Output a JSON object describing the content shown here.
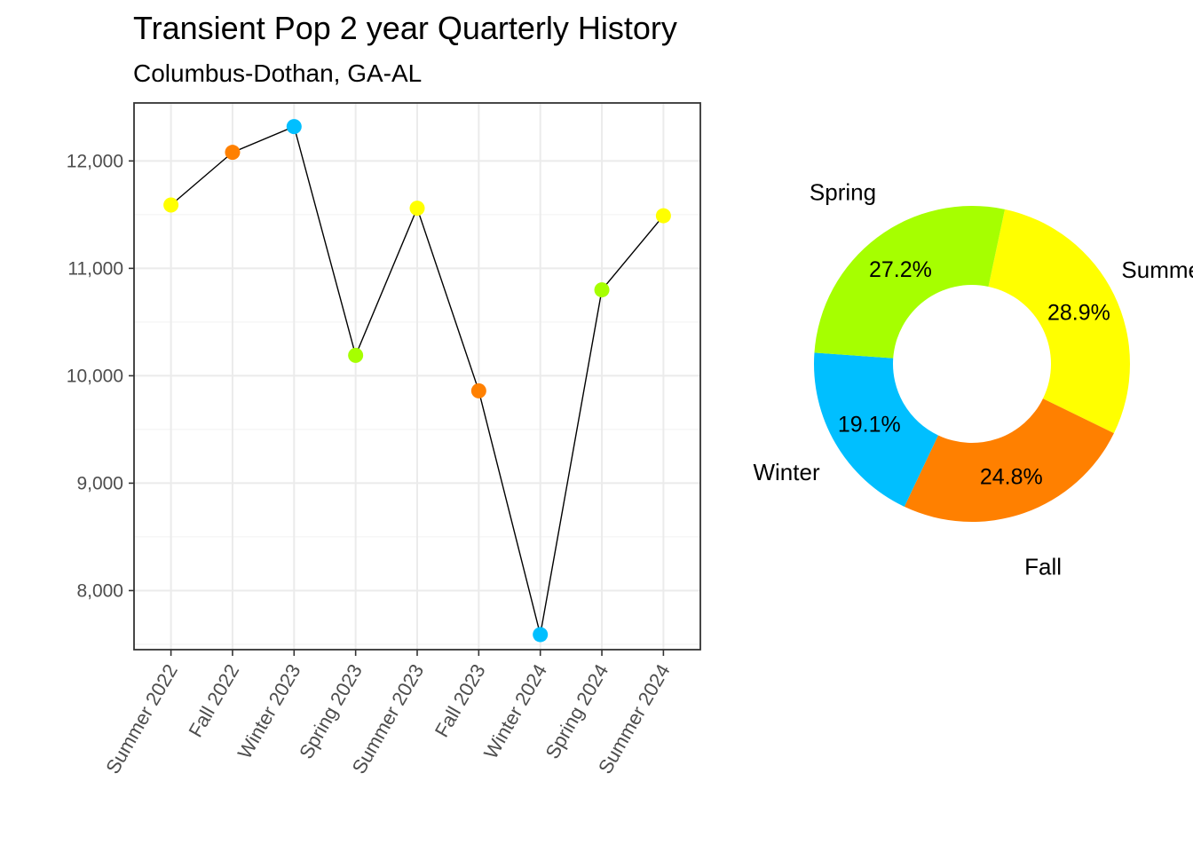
{
  "title": "Transient Pop 2 year Quarterly History",
  "subtitle": "Columbus-Dothan,  GA-AL",
  "season_colors": {
    "Summer": "#ffff00",
    "Fall": "#ff8000",
    "Winter": "#00bfff",
    "Spring": "#a6ff00"
  },
  "chart_data": [
    {
      "type": "line",
      "categories": [
        "Summer 2022",
        "Fall 2022",
        "Winter 2023",
        "Spring 2023",
        "Summer 2023",
        "Fall 2023",
        "Winter 2024",
        "Spring 2024",
        "Summer 2024"
      ],
      "seasons": [
        "Summer",
        "Fall",
        "Winter",
        "Spring",
        "Summer",
        "Fall",
        "Winter",
        "Spring",
        "Summer"
      ],
      "values": [
        11590,
        12080,
        12320,
        10190,
        11560,
        9860,
        7590,
        10800,
        11490
      ],
      "yticks": [
        8000,
        9000,
        10000,
        11000,
        12000
      ],
      "ytick_labels": [
        "8,000",
        "9,000",
        "10,000",
        "11,000",
        "12,000"
      ],
      "ylim": [
        7450,
        12540
      ],
      "xlabel": "",
      "ylabel": "",
      "grid": true,
      "line_color": "#000000"
    },
    {
      "type": "pie",
      "style": "donut",
      "start_category": "Summer",
      "direction": "clockwise",
      "categories": [
        "Summer",
        "Fall",
        "Winter",
        "Spring"
      ],
      "values": [
        28.9,
        24.8,
        19.1,
        27.2
      ],
      "labels": [
        "28.9%",
        "24.8%",
        "19.1%",
        "27.2%"
      ],
      "colors": [
        "#ffff00",
        "#ff8000",
        "#00bfff",
        "#a6ff00"
      ]
    }
  ]
}
